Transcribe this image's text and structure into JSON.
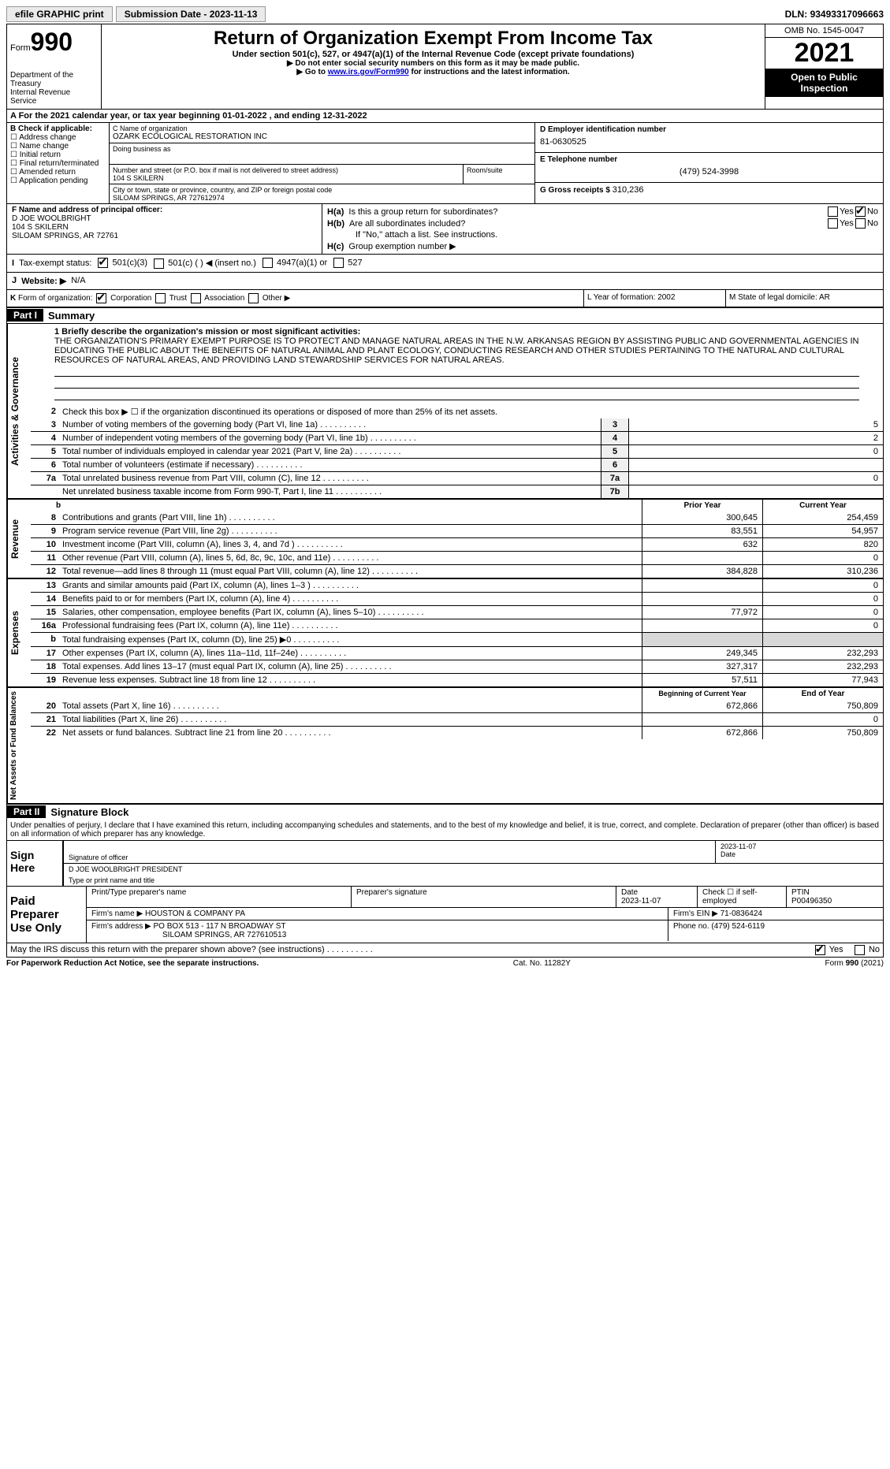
{
  "topbar": {
    "efile": "efile GRAPHIC print",
    "subdate_label": "Submission Date - ",
    "subdate": "2023-11-13",
    "dln_label": "DLN: ",
    "dln": "93493317096663"
  },
  "header": {
    "form_word": "Form",
    "form_num": "990",
    "dept": "Department of the Treasury",
    "irs": "Internal Revenue Service",
    "title": "Return of Organization Exempt From Income Tax",
    "sub": "Under section 501(c), 527, or 4947(a)(1) of the Internal Revenue Code (except private foundations)",
    "note1": "▶ Do not enter social security numbers on this form as it may be made public.",
    "note2_pre": "▶ Go to ",
    "note2_link": "www.irs.gov/Form990",
    "note2_post": " for instructions and the latest information.",
    "omb": "OMB No. 1545-0047",
    "year": "2021",
    "open": "Open to Public Inspection"
  },
  "row_a": "A For the 2021 calendar year, or tax year beginning 01-01-2022    , and ending 12-31-2022",
  "b": {
    "hdr": "B Check if applicable:",
    "items": [
      "Address change",
      "Name change",
      "Initial return",
      "Final return/terminated",
      "Amended return",
      "Application pending"
    ]
  },
  "c": {
    "name_lbl": "C Name of organization",
    "name": "OZARK ECOLOGICAL RESTORATION INC",
    "dba_lbl": "Doing business as",
    "dba": "",
    "street_lbl": "Number and street (or P.O. box if mail is not delivered to street address)",
    "street": "104 S SKILERN",
    "room_lbl": "Room/suite",
    "city_lbl": "City or town, state or province, country, and ZIP or foreign postal code",
    "city": "SILOAM SPRINGS, AR  727612974"
  },
  "d": {
    "lbl": "D Employer identification number",
    "val": "81-0630525"
  },
  "e": {
    "lbl": "E Telephone number",
    "val": "(479) 524-3998"
  },
  "g": {
    "lbl": "G Gross receipts $ ",
    "val": "310,236"
  },
  "f": {
    "lbl": "F  Name and address of principal officer:",
    "name": "D JOE WOOLBRIGHT",
    "street": "104 S SKILERN",
    "city": "SILOAM SPRINGS, AR  72761"
  },
  "h": {
    "a_lbl": "H(a)",
    "a_q": "Is this a group return for subordinates?",
    "b_lbl": "H(b)",
    "b_q": "Are all subordinates included?",
    "b_note": "If \"No,\" attach a list. See instructions.",
    "c_lbl": "H(c)",
    "c_q": "Group exemption number ▶"
  },
  "i": {
    "lbl": "I",
    "text": "Tax-exempt status:",
    "o1": "501(c)(3)",
    "o2": "501(c) (  ) ◀ (insert no.)",
    "o3": "4947(a)(1) or",
    "o4": "527"
  },
  "j": {
    "lbl": "J",
    "text": "Website: ▶",
    "val": "N/A"
  },
  "k": {
    "lbl": "K",
    "text": "Form of organization:",
    "o1": "Corporation",
    "o2": "Trust",
    "o3": "Association",
    "o4": "Other ▶"
  },
  "l": {
    "text": "L Year of formation: 2002"
  },
  "m": {
    "text": "M State of legal domicile: AR"
  },
  "parts": {
    "p1": "Part I",
    "p1t": "Summary",
    "p2": "Part II",
    "p2t": "Signature Block"
  },
  "mission": {
    "lbl": "1  Briefly describe the organization's mission or most significant activities:",
    "text": "THE ORGANIZATION'S PRIMARY EXEMPT PURPOSE IS TO PROTECT AND MANAGE NATURAL AREAS IN THE N.W. ARKANSAS REGION BY ASSISTING PUBLIC AND GOVERNMENTAL AGENCIES IN EDUCATING THE PUBLIC ABOUT THE BENEFITS OF NATURAL ANIMAL AND PLANT ECOLOGY, CONDUCTING RESEARCH AND OTHER STUDIES PERTAINING TO THE NATURAL AND CULTURAL RESOURCES OF NATURAL AREAS, AND PROVIDING LAND STEWARDSHIP SERVICES FOR NATURAL AREAS."
  },
  "gov": {
    "l2": "Check this box ▶ ☐  if the organization discontinued its operations or disposed of more than 25% of its net assets.",
    "rows": [
      {
        "n": "3",
        "d": "Number of voting members of the governing body (Part VI, line 1a)",
        "box": "3",
        "v": "5"
      },
      {
        "n": "4",
        "d": "Number of independent voting members of the governing body (Part VI, line 1b)",
        "box": "4",
        "v": "2"
      },
      {
        "n": "5",
        "d": "Total number of individuals employed in calendar year 2021 (Part V, line 2a)",
        "box": "5",
        "v": "0"
      },
      {
        "n": "6",
        "d": "Total number of volunteers (estimate if necessary)",
        "box": "6",
        "v": ""
      },
      {
        "n": "7a",
        "d": "Total unrelated business revenue from Part VIII, column (C), line 12",
        "box": "7a",
        "v": "0"
      },
      {
        "n": "",
        "d": "Net unrelated business taxable income from Form 990-T, Part I, line 11",
        "box": "7b",
        "v": ""
      }
    ]
  },
  "rev": {
    "hdr_b": "b",
    "hdr_prior": "Prior Year",
    "hdr_curr": "Current Year",
    "rows": [
      {
        "n": "8",
        "d": "Contributions and grants (Part VIII, line 1h)",
        "p": "300,645",
        "c": "254,459"
      },
      {
        "n": "9",
        "d": "Program service revenue (Part VIII, line 2g)",
        "p": "83,551",
        "c": "54,957"
      },
      {
        "n": "10",
        "d": "Investment income (Part VIII, column (A), lines 3, 4, and 7d )",
        "p": "632",
        "c": "820"
      },
      {
        "n": "11",
        "d": "Other revenue (Part VIII, column (A), lines 5, 6d, 8c, 9c, 10c, and 11e)",
        "p": "",
        "c": "0"
      },
      {
        "n": "12",
        "d": "Total revenue—add lines 8 through 11 (must equal Part VIII, column (A), line 12)",
        "p": "384,828",
        "c": "310,236"
      }
    ]
  },
  "exp": {
    "rows": [
      {
        "n": "13",
        "d": "Grants and similar amounts paid (Part IX, column (A), lines 1–3 )",
        "p": "",
        "c": "0"
      },
      {
        "n": "14",
        "d": "Benefits paid to or for members (Part IX, column (A), line 4)",
        "p": "",
        "c": "0"
      },
      {
        "n": "15",
        "d": "Salaries, other compensation, employee benefits (Part IX, column (A), lines 5–10)",
        "p": "77,972",
        "c": "0"
      },
      {
        "n": "16a",
        "d": "Professional fundraising fees (Part IX, column (A), line 11e)",
        "p": "",
        "c": "0"
      },
      {
        "n": "b",
        "d": "Total fundraising expenses (Part IX, column (D), line 25) ▶0",
        "p": "GRAY",
        "c": "GRAY"
      },
      {
        "n": "17",
        "d": "Other expenses (Part IX, column (A), lines 11a–11d, 11f–24e)",
        "p": "249,345",
        "c": "232,293"
      },
      {
        "n": "18",
        "d": "Total expenses. Add lines 13–17 (must equal Part IX, column (A), line 25)",
        "p": "327,317",
        "c": "232,293"
      },
      {
        "n": "19",
        "d": "Revenue less expenses. Subtract line 18 from line 12",
        "p": "57,511",
        "c": "77,943"
      }
    ]
  },
  "net": {
    "hdr_b": "Beginning of Current Year",
    "hdr_e": "End of Year",
    "rows": [
      {
        "n": "20",
        "d": "Total assets (Part X, line 16)",
        "p": "672,866",
        "c": "750,809"
      },
      {
        "n": "21",
        "d": "Total liabilities (Part X, line 26)",
        "p": "",
        "c": "0"
      },
      {
        "n": "22",
        "d": "Net assets or fund balances. Subtract line 21 from line 20",
        "p": "672,866",
        "c": "750,809"
      }
    ]
  },
  "vlabels": {
    "gov": "Activities & Governance",
    "rev": "Revenue",
    "exp": "Expenses",
    "net": "Net Assets or Fund Balances"
  },
  "sig": {
    "decl": "Under penalties of perjury, I declare that I have examined this return, including accompanying schedules and statements, and to the best of my knowledge and belief, it is true, correct, and complete. Declaration of preparer (other than officer) is based on all information of which preparer has any knowledge.",
    "sign_here": "Sign Here",
    "sig_officer": "Signature of officer",
    "date": "2023-11-07",
    "date_lbl": "Date",
    "name": "D JOE WOOLBRIGHT PRESIDENT",
    "name_lbl": "Type or print name and title"
  },
  "prep": {
    "title": "Paid Preparer Use Only",
    "h1": "Print/Type preparer's name",
    "h2": "Preparer's signature",
    "h3": "Date",
    "h3v": "2023-11-07",
    "h4": "Check ☐ if self-employed",
    "h5": "PTIN",
    "h5v": "P00496350",
    "firm_lbl": "Firm's name    ▶ ",
    "firm": "HOUSTON & COMPANY PA",
    "ein_lbl": "Firm's EIN ▶ ",
    "ein": "71-0836424",
    "addr_lbl": "Firm's address ▶ ",
    "addr1": "PO BOX 513 - 117 N BROADWAY ST",
    "addr2": "SILOAM SPRINGS, AR  727610513",
    "phone_lbl": "Phone no. ",
    "phone": "(479) 524-6119"
  },
  "discuss": "May the IRS discuss this return with the preparer shown above? (see instructions)",
  "footer": {
    "l": "For Paperwork Reduction Act Notice, see the separate instructions.",
    "m": "Cat. No. 11282Y",
    "r": "Form 990 (2021)"
  },
  "yes": "Yes",
  "no": "No"
}
